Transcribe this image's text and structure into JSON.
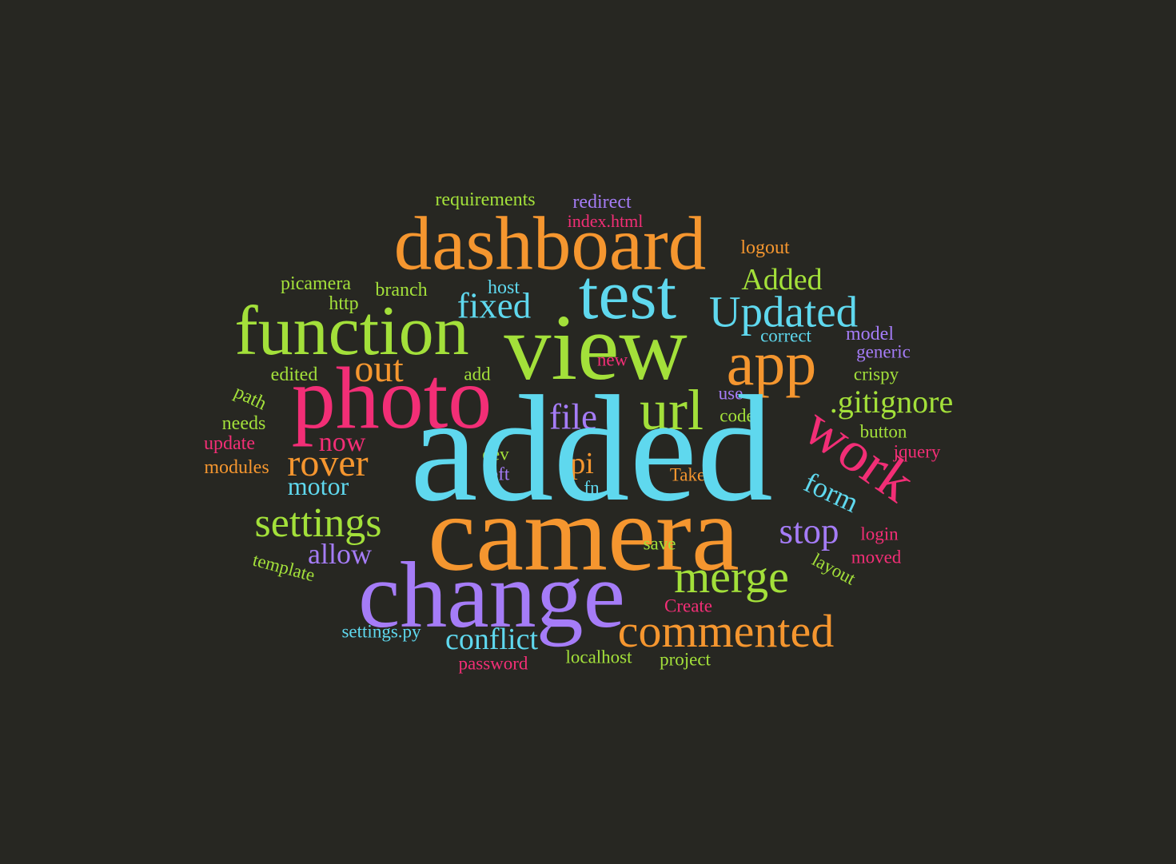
{
  "word_cloud": {
    "background_color": "#272722",
    "palette": {
      "green": "#a3e03a",
      "orange": "#f5962f",
      "cyan": "#5fd8ee",
      "pink": "#f22e76",
      "purple": "#a57cf7"
    },
    "words": {
      "added": "added",
      "camera": "camera",
      "change": "change",
      "view": "view",
      "photo": "photo",
      "dashboard": "dashboard",
      "test": "test",
      "function": "function",
      "app": "app",
      "url": "url",
      "work": "work",
      "commented": "commented",
      "merge": "merge",
      "updated": "Updated",
      "settings": "settings",
      "rover": "rover",
      "out": "out",
      "stop": "stop",
      "fixed": "fixed",
      "file": "file",
      "gitignore": ".gitignore",
      "added_capital": "Added",
      "conflict": "conflict",
      "pi": "pi",
      "form": "form",
      "allow": "allow",
      "now": "now",
      "motor": "motor",
      "requirements": "requirements",
      "redirect": "redirect",
      "index_html": "index.html",
      "logout": "logout",
      "picamera": "picamera",
      "branch": "branch",
      "host": "host",
      "http": "http",
      "correct": "correct",
      "model": "model",
      "generic": "generic",
      "new": "new",
      "edited": "edited",
      "add": "add",
      "crispy": "crispy",
      "path": "path",
      "use": "use",
      "code": "code",
      "needs": "needs",
      "button": "button",
      "update": "update",
      "jquery": "jquery",
      "dev": "dev",
      "modules": "modules",
      "left": "left",
      "take": "Take",
      "fn": "fn",
      "login": "login",
      "save": "save",
      "moved": "moved",
      "layout": "layout",
      "template": "template",
      "create": "Create",
      "settings_py": "settings.py",
      "localhost": "localhost",
      "project": "project",
      "password": "password"
    }
  }
}
